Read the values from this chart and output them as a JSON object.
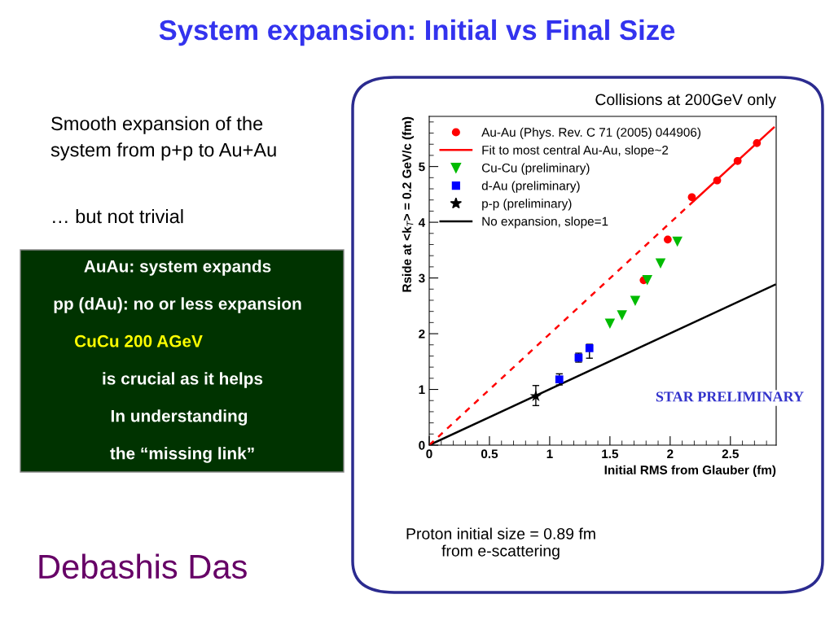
{
  "chart_data": {
    "type": "scatter",
    "title": "System expansion: Initial vs Final Size",
    "xlabel": "Initial RMS from Glauber (fm)",
    "ylabel": "Rside at <k$_{T}$> = 0.2 GeV/c (fm)",
    "xlim": [
      0,
      2.88
    ],
    "ylim": [
      0,
      5.9
    ],
    "xticks": [
      0,
      0.5,
      1,
      1.5,
      2,
      2.5
    ],
    "yticks": [
      0,
      1,
      2,
      3,
      4,
      5
    ],
    "grid": false,
    "legend": "top left",
    "series": [
      {
        "name": "Au-Au (Phys. Rev. C 71 (2005) 044906)",
        "marker": "circle",
        "color": "#ff0000",
        "x": [
          1.78,
          1.98,
          2.18,
          2.39,
          2.56,
          2.72
        ],
        "values": [
          2.96,
          3.69,
          4.45,
          4.75,
          5.1,
          5.42
        ]
      },
      {
        "name": "Fit to most central Au-Au, slope~2",
        "type": "line",
        "marker": "none",
        "line_style": "solid",
        "color": "#ff0000",
        "x": [
          2.2,
          2.86
        ],
        "values": [
          4.39,
          5.7
        ]
      },
      {
        "name": "Cu-Cu (preliminary)",
        "marker": "triangle",
        "color": "#00bb00",
        "x": [
          1.5,
          1.6,
          1.71,
          1.81,
          1.92,
          2.06
        ],
        "values": [
          2.18,
          2.33,
          2.59,
          2.96,
          3.26,
          3.65
        ]
      },
      {
        "name": "d-Au (preliminary)",
        "marker": "square",
        "color": "#0000ff",
        "x": [
          1.08,
          1.24,
          1.33
        ],
        "values": [
          1.18,
          1.57,
          1.74
        ],
        "errors": [
          0.1,
          0.08,
          [
            1.56,
            1.81
          ]
        ]
      },
      {
        "name": "p-p (preliminary)",
        "marker": "star",
        "color": "#000000",
        "x": [
          0.885
        ],
        "values": [
          0.88
        ],
        "errors": [
          [
            0.71,
            1.07
          ]
        ]
      },
      {
        "name": "No expansion, slope=1",
        "type": "line",
        "marker": "none",
        "line_style": "solid",
        "color": "#000000",
        "x": [
          0,
          2.87
        ],
        "values": [
          0,
          2.88
        ]
      },
      {
        "type": "line",
        "marker": "none",
        "line_style": "dashed",
        "color": "#ff0000",
        "x": [
          0,
          2.2
        ],
        "values": [
          0,
          4.39
        ]
      }
    ],
    "annotations": [
      "Collisions at 200GeV only",
      "Smooth expansion of the\nsystem from p+p to Au+Au",
      "… but not trivial",
      "AuAu: system expands",
      "pp (dAu): no or less expansion",
      "CuCu 200 AGeV",
      "is crucial as it helps",
      "In understanding",
      "the “missing link”",
      "STAR PRELIMINARY",
      "Debashis Das",
      "Proton initial size = 0.89 fm\nfrom e-scattering"
    ]
  }
}
